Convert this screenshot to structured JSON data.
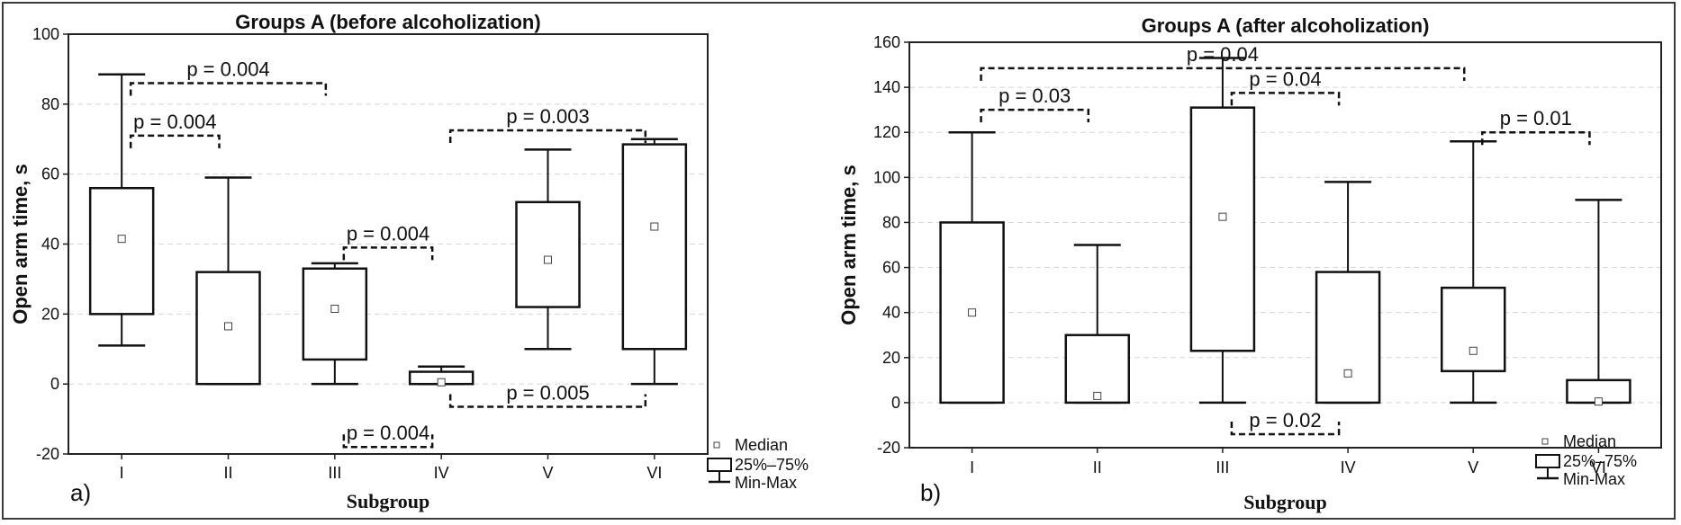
{
  "chart_data": [
    {
      "type": "boxplot",
      "panel_label": "a)",
      "title": "Groups A (before alcoholization)",
      "xlabel": "Subgroup",
      "ylabel": "Open arm time, s",
      "ylim": [
        -20,
        100
      ],
      "yticks": [
        -20,
        0,
        20,
        40,
        60,
        80,
        100
      ],
      "categories": [
        "I",
        "II",
        "III",
        "IV",
        "V",
        "VI"
      ],
      "boxes": [
        {
          "name": "I",
          "min": 11,
          "q1": 20,
          "median": 41.5,
          "q3": 56,
          "max": 88.5
        },
        {
          "name": "II",
          "min": 0,
          "q1": 0,
          "median": 16.5,
          "q3": 32,
          "max": 59
        },
        {
          "name": "III",
          "min": 0,
          "q1": 7,
          "median": 21.5,
          "q3": 33,
          "max": 34.5
        },
        {
          "name": "IV",
          "min": 0,
          "q1": 0,
          "median": 0.5,
          "q3": 3.5,
          "max": 5
        },
        {
          "name": "V",
          "min": 10,
          "q1": 22,
          "median": 35.5,
          "q3": 52,
          "max": 67
        },
        {
          "name": "VI",
          "min": 0,
          "q1": 10,
          "median": 45,
          "q3": 68.5,
          "max": 70
        }
      ],
      "comparisons": [
        {
          "label": "p = 0.004",
          "from": "I",
          "to": "II",
          "y": 71,
          "side": "top"
        },
        {
          "label": "p = 0.004",
          "from": "I",
          "to": "III",
          "y": 86,
          "side": "top"
        },
        {
          "label": "p = 0.004",
          "from": "III",
          "to": "IV",
          "y": 39,
          "side": "top"
        },
        {
          "label": "p = 0.003",
          "from": "IV",
          "to": "VI",
          "y": 72.5,
          "side": "top"
        },
        {
          "label": "p = 0.004",
          "from": "III",
          "to": "IV",
          "y": -18,
          "side": "bottom"
        },
        {
          "label": "p  = 0.005",
          "from": "IV",
          "to": "VI",
          "y": -6.5,
          "side": "bottom"
        }
      ],
      "legend": {
        "median": "Median",
        "box": "25%–75%",
        "whisker": "Min-Max"
      }
    },
    {
      "type": "boxplot",
      "panel_label": "b)",
      "title": "Groups A (after alcoholization)",
      "xlabel": "Subgroup",
      "ylabel": "Open arm time, s",
      "ylim": [
        -20,
        160
      ],
      "yticks": [
        -20,
        0,
        20,
        40,
        60,
        80,
        100,
        120,
        140,
        160
      ],
      "categories": [
        "I",
        "II",
        "III",
        "IV",
        "V",
        "VI"
      ],
      "boxes": [
        {
          "name": "I",
          "min": 0,
          "q1": 0,
          "median": 40,
          "q3": 80,
          "max": 120
        },
        {
          "name": "II",
          "min": 0,
          "q1": 0,
          "median": 3,
          "q3": 30,
          "max": 70
        },
        {
          "name": "III",
          "min": 0,
          "q1": 23,
          "median": 82.5,
          "q3": 131,
          "max": 153
        },
        {
          "name": "IV",
          "min": 0,
          "q1": 0,
          "median": 13,
          "q3": 58,
          "max": 98
        },
        {
          "name": "V",
          "min": 0,
          "q1": 14,
          "median": 23,
          "q3": 51,
          "max": 116
        },
        {
          "name": "VI",
          "min": 0,
          "q1": 0,
          "median": 0.5,
          "q3": 10,
          "max": 90
        }
      ],
      "comparisons": [
        {
          "label": "p = 0.03",
          "from": "I",
          "to": "II",
          "y": 130,
          "side": "top"
        },
        {
          "label": "p = 0.04",
          "from": "I",
          "to": "V",
          "y": 148.5,
          "side": "top"
        },
        {
          "label": "p = 0.04",
          "from": "III",
          "to": "IV",
          "y": 137.5,
          "side": "top"
        },
        {
          "label": "p = 0.01",
          "from": "V",
          "to": "VI",
          "y": 120,
          "side": "top"
        },
        {
          "label": "p = 0.02",
          "from": "III",
          "to": "IV",
          "y": -14,
          "side": "bottom"
        }
      ],
      "legend": {
        "median": "Median",
        "box": "25%–75%",
        "whisker": "Min-Max"
      }
    }
  ]
}
